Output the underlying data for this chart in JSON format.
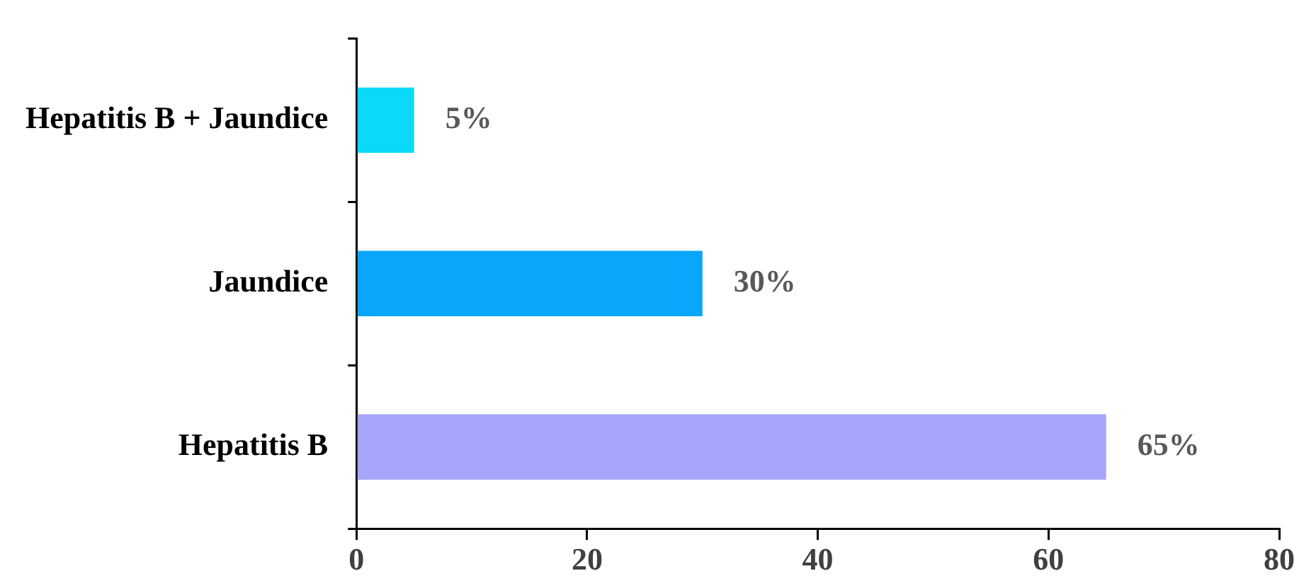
{
  "chart_data": {
    "type": "bar",
    "orientation": "horizontal",
    "categories": [
      "Hepatitis B + Jaundice",
      "Jaundice",
      "Hepatitis B"
    ],
    "values": [
      5,
      30,
      65
    ],
    "colors": [
      "#0ad9fa",
      "#0aa6fc",
      "#a6a6fc"
    ],
    "value_labels": [
      "5%",
      "30%",
      "65%"
    ],
    "xlim": [
      0,
      80
    ],
    "xticks": [
      0,
      20,
      40,
      60,
      80
    ],
    "grid": false,
    "legend": false
  }
}
